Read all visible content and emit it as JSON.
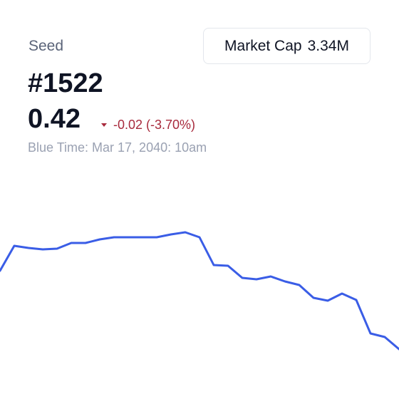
{
  "header": {
    "label": "Seed",
    "id": "#1522",
    "price": "0.42",
    "change": "-0.02 (-3.70%)",
    "timestamp": "Blue Time: Mar 17, 2040: 10am"
  },
  "market_cap": {
    "label": "Market Cap",
    "value": "3.34M"
  },
  "chart_data": {
    "type": "line",
    "color": "#3a5de6",
    "values": [
      120,
      155,
      152,
      150,
      151,
      159,
      159,
      164,
      167,
      167,
      167,
      167,
      171,
      174,
      167,
      128,
      127,
      110,
      108,
      112,
      105,
      100,
      82,
      78,
      88,
      79,
      32,
      27,
      10
    ]
  }
}
